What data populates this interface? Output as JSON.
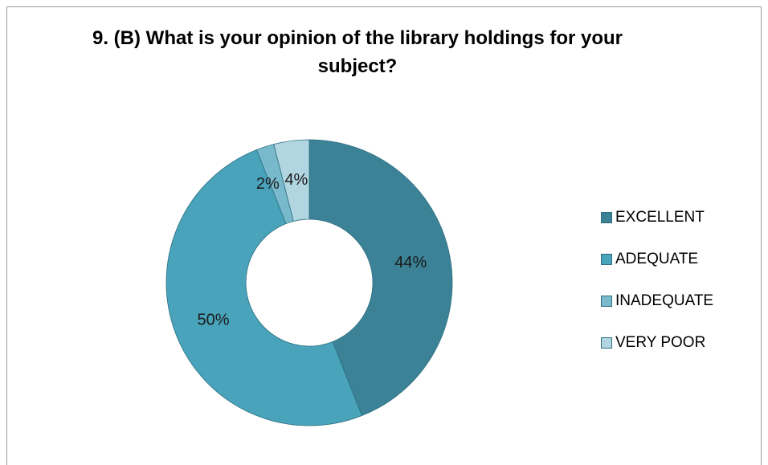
{
  "chart_data": {
    "type": "pie",
    "donut": true,
    "title": "9. (B) What is your opinion of the library holdings for your subject?",
    "categories": [
      "EXCELLENT",
      "ADEQUATE",
      "INADEQUATE",
      "VERY POOR"
    ],
    "values": [
      44,
      50,
      2,
      4
    ],
    "data_labels": [
      "44%",
      "50%",
      "2%",
      "4%"
    ],
    "colors": [
      "#3b8296",
      "#48a3bb",
      "#78b9cc",
      "#b2d6e1"
    ],
    "legend": "right"
  }
}
